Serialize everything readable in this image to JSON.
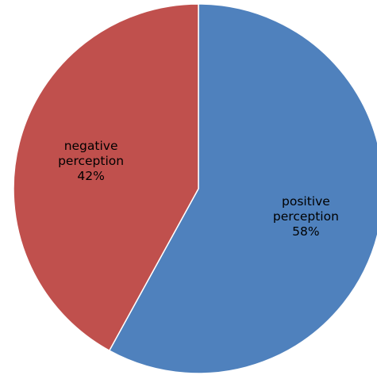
{
  "chart_data": {
    "type": "pie",
    "title": "",
    "categories": [
      "positive perception",
      "negative perception"
    ],
    "values": [
      58,
      42
    ],
    "units": "%",
    "slices": [
      {
        "name": "positive perception",
        "value": 58,
        "label_lines": [
          "positive",
          "perception",
          "58%"
        ],
        "color": "#4F81BD"
      },
      {
        "name": "negative perception",
        "value": 42,
        "label_lines": [
          "negative",
          "perception",
          "42%"
        ],
        "color": "#C0504D"
      }
    ],
    "legend": "none",
    "start_angle_deg": 0,
    "direction": "clockwise",
    "slice_border_color": "#ffffff",
    "label_color": "#000000"
  }
}
